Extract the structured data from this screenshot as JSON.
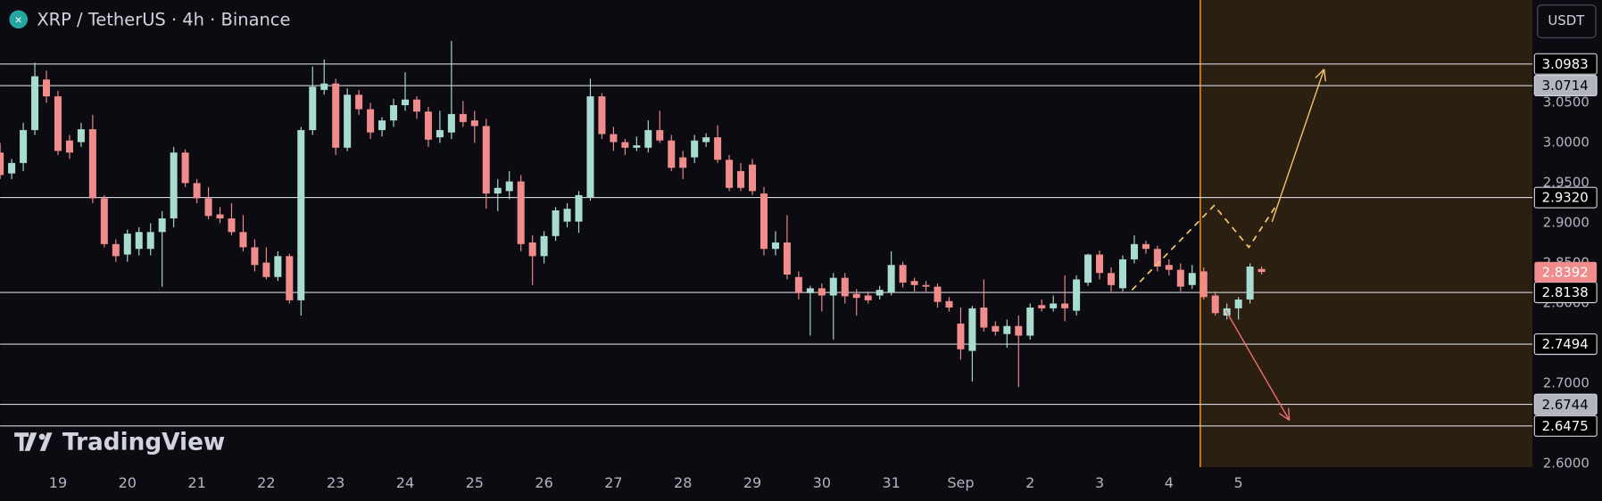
{
  "chart_data": {
    "type": "candlestick",
    "title": "XRP / TetherUS · 4h · Binance",
    "currency_button": "USDT",
    "brand": "TradingView",
    "up_color": "#a8dcd1",
    "down_color": "#f08c8c",
    "xlim": [
      0,
      132.4
    ],
    "xticks": [
      {
        "value": 5,
        "label": "19"
      },
      {
        "value": 11,
        "label": "20"
      },
      {
        "value": 17,
        "label": "21"
      },
      {
        "value": 23,
        "label": "22"
      },
      {
        "value": 29,
        "label": "23"
      },
      {
        "value": 35,
        "label": "24"
      },
      {
        "value": 41,
        "label": "25"
      },
      {
        "value": 47,
        "label": "26"
      },
      {
        "value": 53,
        "label": "27"
      },
      {
        "value": 59,
        "label": "28"
      },
      {
        "value": 65,
        "label": "29"
      },
      {
        "value": 71,
        "label": "30"
      },
      {
        "value": 77,
        "label": "31"
      },
      {
        "value": 83,
        "label": "Sep"
      },
      {
        "value": 89,
        "label": "2"
      },
      {
        "value": 95,
        "label": "3"
      },
      {
        "value": 101,
        "label": "4"
      },
      {
        "value": 107,
        "label": "5"
      }
    ],
    "ylim": [
      2.596,
      3.178
    ],
    "yticks": [
      {
        "value": 2.6,
        "label": "2.6000"
      },
      {
        "value": 2.7,
        "label": "2.7000"
      },
      {
        "value": 2.8,
        "label": "2.8000"
      },
      {
        "value": 2.85,
        "label": "2.8500"
      },
      {
        "value": 2.9,
        "label": "2.9000"
      },
      {
        "value": 2.95,
        "label": "2.9500"
      },
      {
        "value": 3.0,
        "label": "3.0000"
      },
      {
        "value": 3.05,
        "label": "3.0500"
      }
    ],
    "levels": [
      3.0983,
      3.0714,
      {
        "value": 2.932,
        "label": "2.9320"
      },
      2.8138,
      2.7494,
      2.6744,
      2.6475
    ],
    "level_colors": [
      "#000000",
      "#b2b5be",
      "#000000",
      "#000000",
      "#000000",
      "#b2b5be",
      "#000000"
    ],
    "zone_start": 103.7,
    "zone_color": "#2b1f12",
    "zone_line_color": "#f7931a",
    "projection": {
      "color": "#f5c56b",
      "x": [
        97.8,
        104.9,
        107.9,
        110.2
      ],
      "y": [
        2.8168,
        2.922,
        2.87,
        2.9207
      ]
    },
    "arrows": [
      {
        "color": "#f5c56b",
        "x": [
          109.9,
          114.4
        ],
        "y": [
          2.9017,
          3.0918
        ]
      },
      {
        "color": "#f07070",
        "x": [
          105.9,
          111.4
        ],
        "y": [
          2.7915,
          2.6546
        ]
      }
    ],
    "open": [
      2.988,
      2.962,
      2.975,
      3.016,
      3.079,
      3.058,
      3.003,
      3.001,
      3.017,
      2.931,
      2.874,
      2.861,
      2.868,
      2.868,
      2.889,
      2.906,
      2.988,
      2.95,
      2.931,
      2.911,
      2.906,
      2.889,
      2.87,
      2.851,
      2.833,
      2.859,
      2.804,
      3.016,
      3.066,
      3.074,
      2.994,
      3.06,
      3.042,
      3.016,
      3.028,
      3.047,
      3.054,
      3.039,
      3.007,
      3.013,
      3.036,
      3.028,
      3.021,
      2.937,
      2.94,
      2.952,
      2.876,
      2.859,
      2.884,
      2.902,
      2.902,
      2.932,
      3.058,
      3.011,
      3.001,
      2.994,
      2.994,
      3.016,
      3.003,
      2.982,
      2.982,
      3.001,
      3.007,
      2.979,
      2.965,
      2.973,
      2.937,
      2.868,
      2.876,
      2.833,
      2.813,
      2.819,
      2.81,
      2.832,
      2.812,
      2.81,
      2.81,
      2.814,
      2.848,
      2.828,
      2.823,
      2.821,
      2.803,
      2.775,
      2.741,
      2.795,
      2.772,
      2.762,
      2.772,
      2.76,
      2.798,
      2.794,
      2.8,
      2.791,
      2.826,
      2.861,
      2.838,
      2.819,
      2.855,
      2.874,
      2.868,
      2.848,
      2.842,
      2.823,
      2.84,
      2.81,
      2.785,
      2.794,
      2.805,
      2.843
    ],
    "high": [
      3.0,
      2.98,
      3.025,
      3.1,
      3.09,
      3.065,
      3.01,
      3.025,
      3.035,
      2.935,
      2.88,
      2.892,
      2.895,
      2.9,
      2.915,
      2.995,
      2.992,
      2.955,
      2.945,
      2.92,
      2.925,
      2.91,
      2.88,
      2.87,
      2.865,
      2.862,
      3.02,
      3.095,
      3.104,
      3.08,
      3.068,
      3.066,
      3.05,
      3.032,
      3.055,
      3.088,
      3.058,
      3.045,
      3.04,
      3.127,
      3.052,
      3.04,
      3.03,
      2.955,
      2.965,
      2.96,
      2.885,
      2.89,
      2.92,
      2.925,
      2.94,
      3.08,
      3.062,
      3.02,
      3.005,
      3.008,
      3.028,
      3.04,
      3.01,
      2.99,
      3.01,
      3.012,
      3.022,
      2.985,
      2.975,
      2.98,
      2.945,
      2.89,
      2.91,
      2.84,
      2.822,
      2.825,
      2.838,
      2.838,
      2.818,
      2.815,
      2.822,
      2.865,
      2.852,
      2.832,
      2.828,
      2.825,
      2.808,
      2.795,
      2.797,
      2.83,
      2.778,
      2.78,
      2.785,
      2.8,
      2.805,
      2.81,
      2.835,
      2.835,
      2.862,
      2.866,
      2.845,
      2.86,
      2.885,
      2.878,
      2.872,
      2.855,
      2.85,
      2.848,
      2.845,
      2.815,
      2.8,
      2.808,
      2.85,
      2.846
    ],
    "low": [
      2.955,
      2.955,
      2.965,
      3.01,
      3.05,
      2.985,
      2.98,
      2.995,
      2.925,
      2.87,
      2.852,
      2.852,
      2.86,
      2.86,
      2.821,
      2.895,
      2.945,
      2.925,
      2.905,
      2.9,
      2.885,
      2.865,
      2.84,
      2.83,
      2.828,
      2.8,
      2.785,
      3.01,
      3.06,
      2.985,
      2.99,
      3.035,
      3.005,
      3.008,
      3.02,
      3.04,
      3.03,
      2.995,
      3.0,
      3.005,
      3.02,
      3.0,
      2.918,
      2.915,
      2.93,
      2.865,
      2.823,
      2.85,
      2.878,
      2.895,
      2.888,
      2.928,
      3.005,
      2.99,
      2.985,
      2.99,
      2.988,
      3.0,
      2.965,
      2.955,
      2.975,
      2.995,
      2.975,
      2.94,
      2.94,
      2.935,
      2.86,
      2.86,
      2.83,
      2.805,
      2.76,
      2.79,
      2.755,
      2.8,
      2.785,
      2.8,
      2.805,
      2.81,
      2.82,
      2.815,
      2.815,
      2.795,
      2.79,
      2.73,
      2.703,
      2.765,
      2.76,
      2.745,
      2.696,
      2.755,
      2.79,
      2.79,
      2.778,
      2.785,
      2.822,
      2.83,
      2.815,
      2.815,
      2.85,
      2.862,
      2.84,
      2.835,
      2.815,
      2.818,
      2.805,
      2.785,
      2.78,
      2.78,
      2.8,
      2.836
    ],
    "close": [
      2.96,
      2.975,
      3.016,
      3.083,
      3.058,
      2.99,
      2.988,
      3.017,
      2.931,
      2.874,
      2.859,
      2.887,
      2.889,
      2.889,
      2.906,
      2.988,
      2.95,
      2.931,
      2.909,
      2.906,
      2.889,
      2.87,
      2.848,
      2.833,
      2.859,
      2.804,
      3.016,
      3.07,
      3.074,
      2.994,
      3.06,
      3.042,
      3.013,
      3.028,
      3.047,
      3.054,
      3.039,
      3.004,
      3.016,
      3.036,
      3.026,
      3.021,
      2.937,
      2.944,
      2.952,
      2.874,
      2.859,
      2.884,
      2.916,
      2.918,
      2.935,
      3.058,
      3.011,
      3.001,
      2.994,
      2.997,
      3.016,
      3.003,
      2.969,
      2.969,
      3.003,
      3.007,
      2.979,
      2.944,
      2.944,
      2.94,
      2.868,
      2.876,
      2.836,
      2.813,
      2.819,
      2.81,
      2.832,
      2.809,
      2.807,
      2.804,
      2.817,
      2.848,
      2.826,
      2.823,
      2.821,
      2.802,
      2.795,
      2.743,
      2.794,
      2.77,
      2.765,
      2.772,
      2.76,
      2.795,
      2.794,
      2.8,
      2.794,
      2.83,
      2.861,
      2.838,
      2.823,
      2.855,
      2.874,
      2.868,
      2.846,
      2.842,
      2.821,
      2.838,
      2.808,
      2.788,
      2.794,
      2.805,
      2.846,
      2.8392
    ]
  }
}
